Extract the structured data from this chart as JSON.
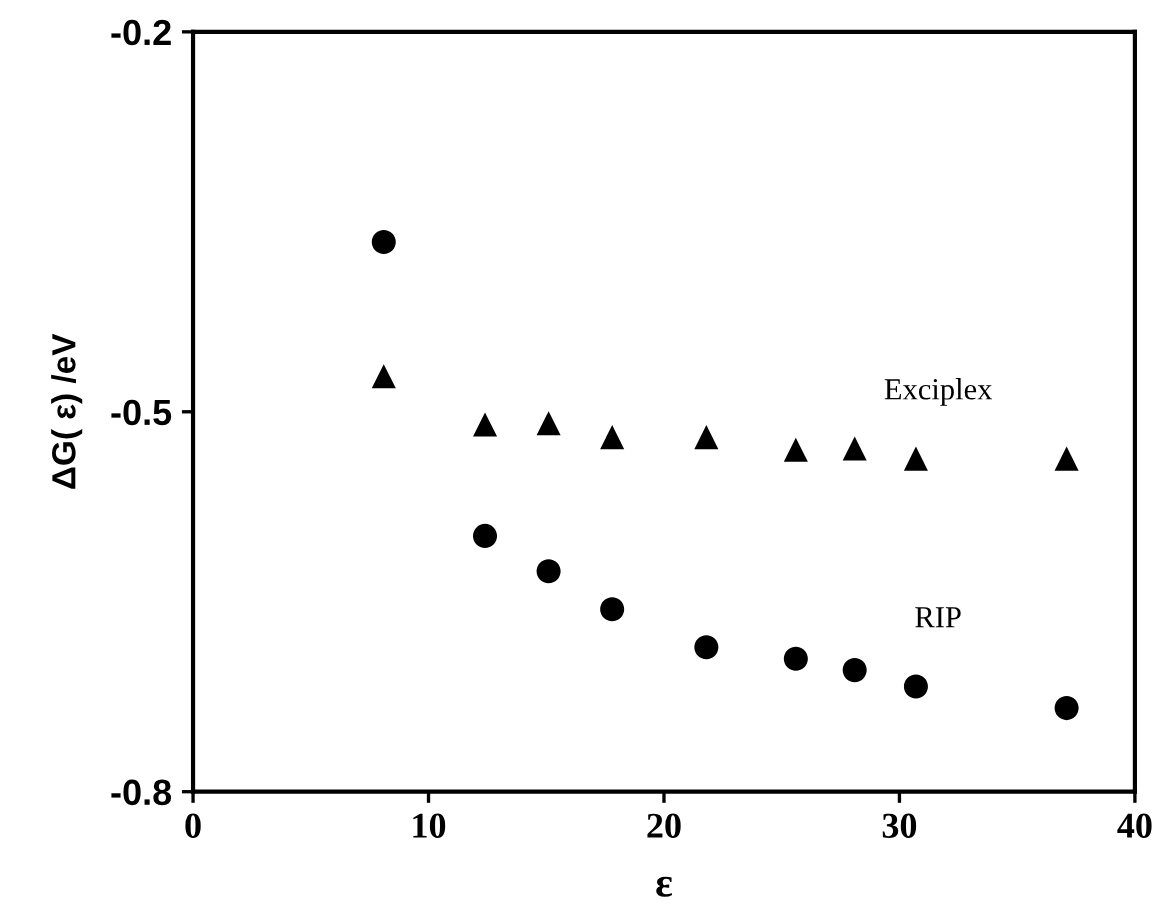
{
  "chart_data": {
    "type": "scatter",
    "xlabel": "ε",
    "ylabel": "ΔG( ε) /eV",
    "x": [
      8.1,
      12.4,
      15.1,
      17.8,
      21.8,
      25.6,
      28.1,
      30.7,
      37.1
    ],
    "series": [
      {
        "name": "Exciplex",
        "color": "#000000",
        "marker": "triangle",
        "values": [
          -0.472,
          -0.51,
          -0.509,
          -0.52,
          -0.52,
          -0.53,
          -0.529,
          -0.537,
          -0.537
        ]
      },
      {
        "name": "RIP",
        "color": "#000000",
        "marker": "circle",
        "values": [
          -0.366,
          -0.598,
          -0.626,
          -0.656,
          -0.686,
          -0.695,
          -0.704,
          -0.717,
          -0.734
        ]
      }
    ],
    "xlim": [
      0,
      40
    ],
    "xticks": [
      0,
      10,
      20,
      30,
      40
    ],
    "ylim": [
      -0.8,
      -0.2
    ],
    "yticks": [
      -0.8,
      -0.5,
      -0.2
    ],
    "grid": false,
    "legend": false
  }
}
